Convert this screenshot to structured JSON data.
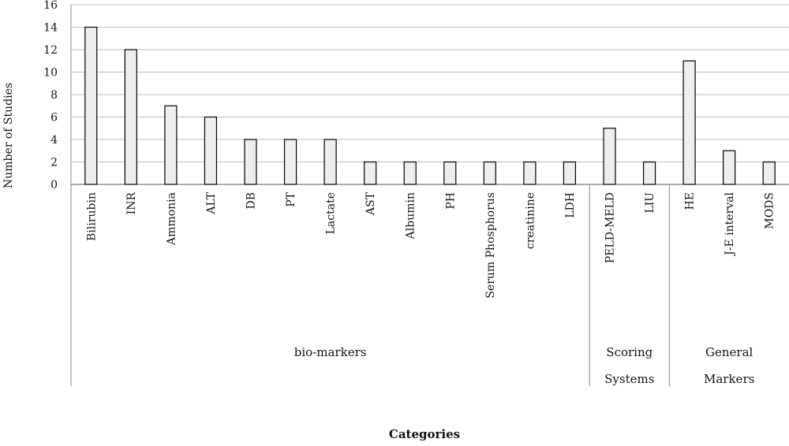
{
  "chart_data": {
    "type": "bar",
    "xlabel": "Categories",
    "ylabel": "Number of Studies",
    "ylim": [
      0,
      16
    ],
    "yticks": [
      0,
      2,
      4,
      6,
      8,
      10,
      12,
      14,
      16
    ],
    "grid": true,
    "legend": "none",
    "bar_fill": "#eeeeee",
    "bar_stroke": "#000000",
    "categories": [
      "Bilirubin",
      "INR",
      "Ammonia",
      "ALT",
      "DB",
      "PT",
      "Lactate",
      "AST",
      "Albumin",
      "PH",
      "Serum Phosphorus",
      "creatinine",
      "LDH",
      "PELD-MELD",
      "LIU",
      "HE",
      "J-E interval",
      "MODS"
    ],
    "values": [
      14,
      12,
      7,
      6,
      4,
      4,
      4,
      2,
      2,
      2,
      2,
      2,
      2,
      5,
      2,
      11,
      3,
      2
    ],
    "groups": [
      {
        "lines": [
          "bio-markers"
        ],
        "count": 13
      },
      {
        "lines": [
          "Scoring",
          "Systems"
        ],
        "count": 2
      },
      {
        "lines": [
          "General",
          "Markers"
        ],
        "count": 3
      }
    ]
  }
}
